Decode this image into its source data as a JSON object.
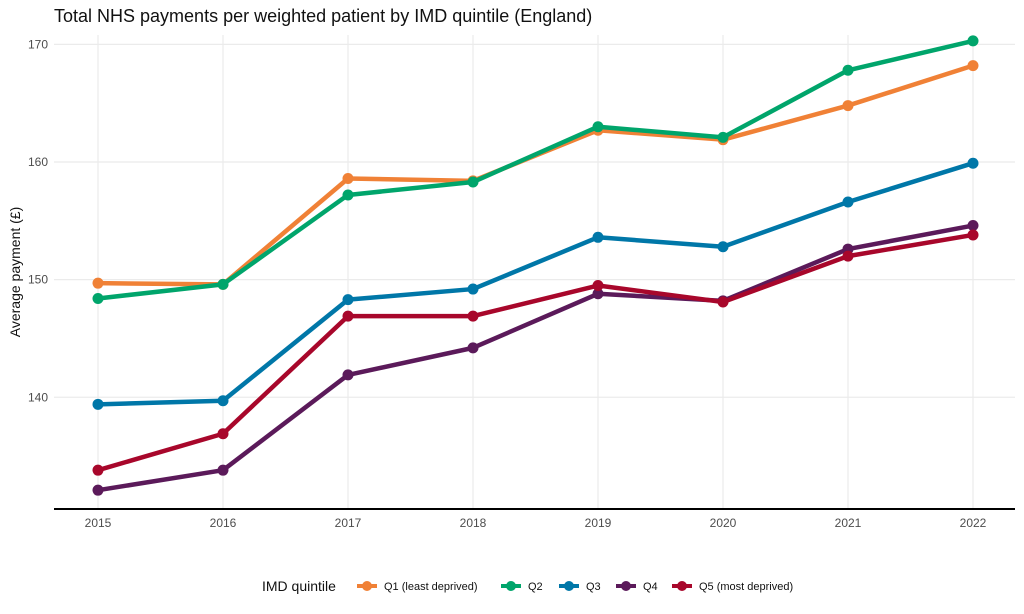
{
  "chart_data": {
    "type": "line",
    "title": "Total NHS payments per weighted patient by IMD quintile (England)",
    "xlabel": "",
    "ylabel": "Average payment (£)",
    "x": [
      2015,
      2016,
      2017,
      2018,
      2019,
      2020,
      2021,
      2022
    ],
    "y_ticks": [
      140,
      150,
      160,
      170
    ],
    "ylim": [
      130.5,
      170.8
    ],
    "grid": true,
    "legend": {
      "title": "IMD quintile",
      "position": "bottom"
    },
    "series": [
      {
        "name": "Q1 (least deprived)",
        "color": "#F08136",
        "values": [
          149.7,
          149.6,
          158.6,
          158.4,
          162.7,
          161.9,
          164.8,
          168.2
        ]
      },
      {
        "name": "Q2",
        "color": "#00A56B",
        "values": [
          148.4,
          149.6,
          157.2,
          158.3,
          163.0,
          162.1,
          167.8,
          170.3
        ]
      },
      {
        "name": "Q3",
        "color": "#0077A8",
        "values": [
          139.4,
          139.7,
          148.3,
          149.2,
          153.6,
          152.8,
          156.6,
          159.9
        ]
      },
      {
        "name": "Q4",
        "color": "#5B1A5A",
        "values": [
          132.1,
          133.8,
          141.9,
          144.2,
          148.8,
          148.2,
          152.6,
          154.6
        ]
      },
      {
        "name": "Q5 (most deprived)",
        "color": "#A8072B",
        "values": [
          133.8,
          136.9,
          146.9,
          146.9,
          149.5,
          148.1,
          152.0,
          153.8
        ]
      }
    ]
  }
}
